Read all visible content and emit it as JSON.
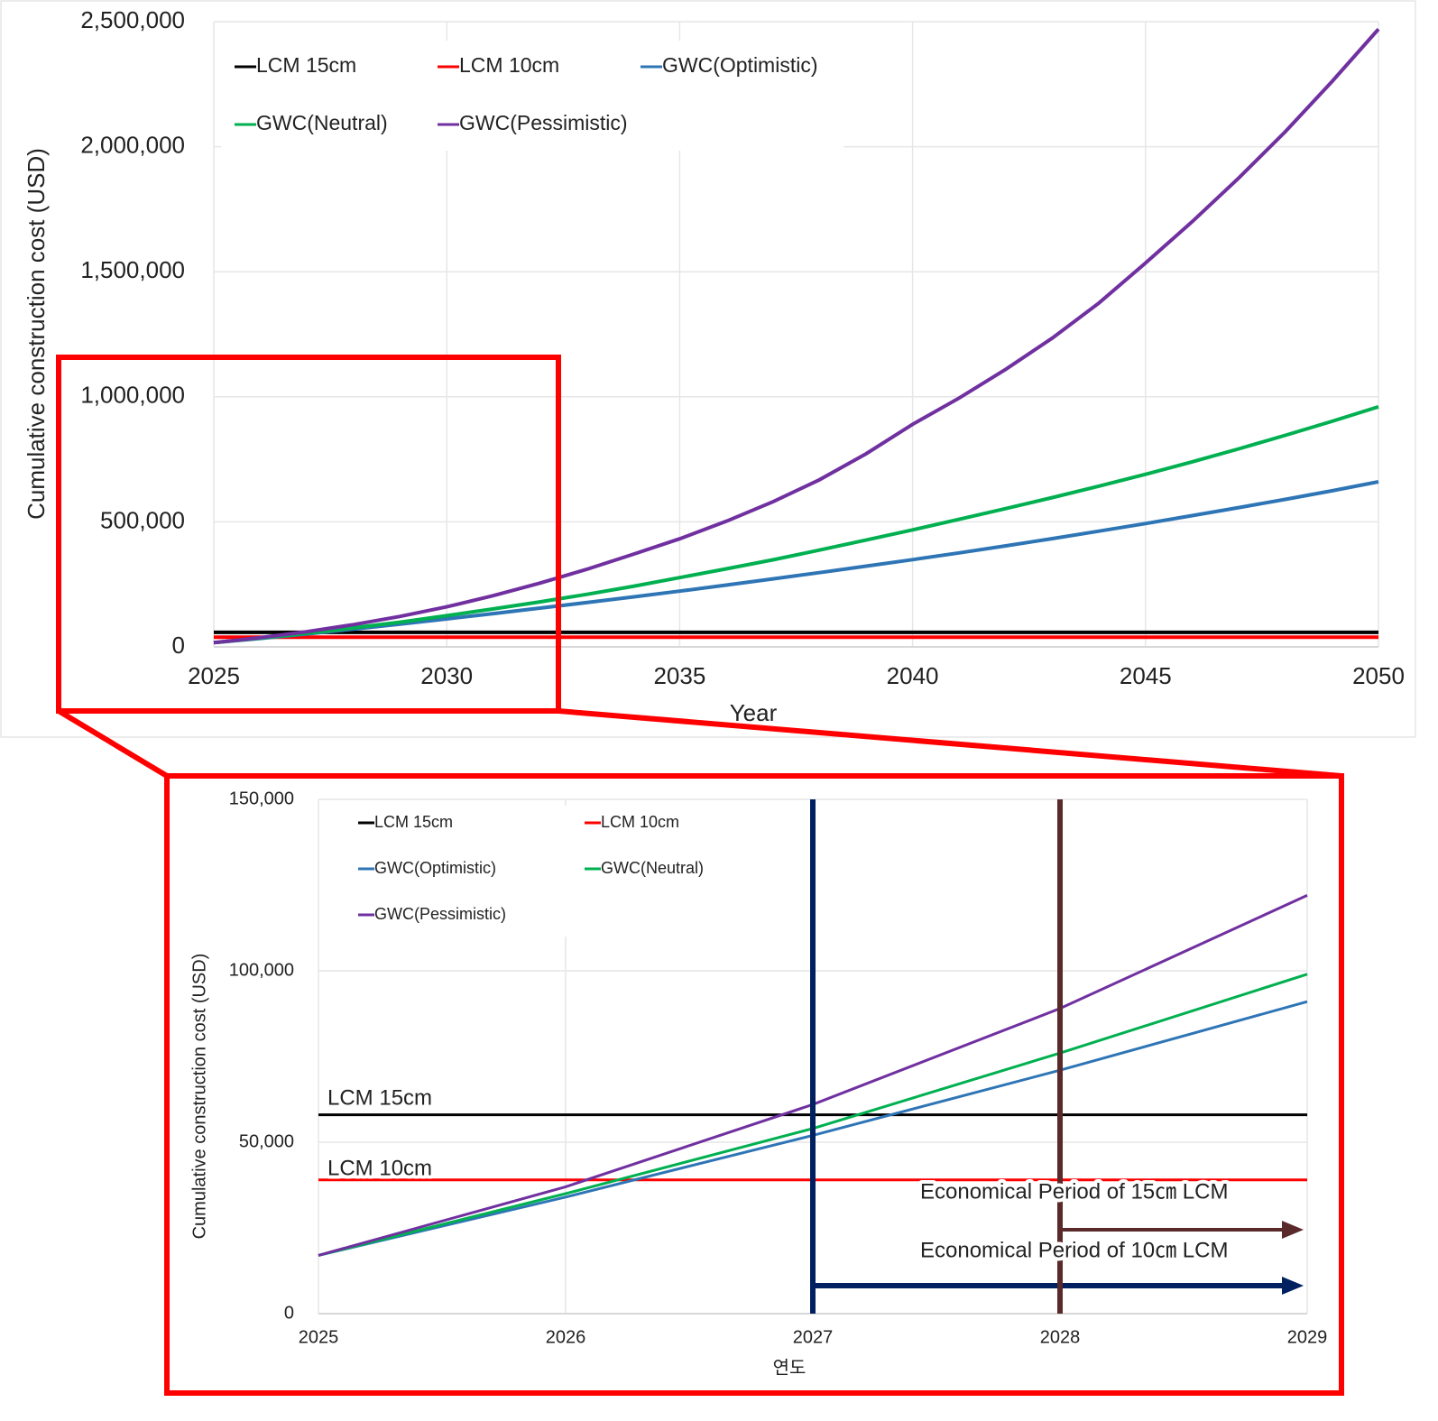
{
  "chart_data": [
    {
      "type": "line",
      "ylabel": "Cumulative construction cost (USD)",
      "xlabel": "Year",
      "x": [
        2025,
        2026,
        2027,
        2028,
        2029,
        2030,
        2031,
        2032,
        2033,
        2034,
        2035,
        2036,
        2037,
        2038,
        2039,
        2040,
        2041,
        2042,
        2043,
        2044,
        2045,
        2046,
        2047,
        2048,
        2049,
        2050
      ],
      "xlim": [
        2025,
        2050
      ],
      "xticks": [
        2025,
        2030,
        2035,
        2040,
        2045,
        2050
      ],
      "ylim": [
        0,
        2500000
      ],
      "yticks": [
        0,
        {
          "value": 500000,
          "label": "500,000"
        },
        {
          "value": 1000000,
          "label": "1,000,000"
        },
        {
          "value": 1500000,
          "label": "1,500,000"
        },
        {
          "value": 2000000,
          "label": "2,000,000"
        },
        {
          "value": 2500000,
          "label": "2,500,000"
        }
      ],
      "grid": true,
      "legend": "top-left",
      "series": [
        {
          "name": "LCM 15cm",
          "color": "#000000",
          "values": [
            58000,
            58000,
            58000,
            58000,
            58000,
            58000,
            58000,
            58000,
            58000,
            58000,
            58000,
            58000,
            58000,
            58000,
            58000,
            58000,
            58000,
            58000,
            58000,
            58000,
            58000,
            58000,
            58000,
            58000,
            58000,
            58000
          ]
        },
        {
          "name": "LCM 10cm",
          "color": "#ff0000",
          "values": [
            39000,
            39000,
            39000,
            39000,
            39000,
            39000,
            39000,
            39000,
            39000,
            39000,
            39000,
            39000,
            39000,
            39000,
            39000,
            39000,
            39000,
            39000,
            39000,
            39000,
            39000,
            39000,
            39000,
            39000,
            39000,
            39000
          ]
        },
        {
          "name": "GWC(Optimistic)",
          "color": "#2e75b6",
          "values": [
            17000,
            34000,
            52000,
            71000,
            91000,
            112000,
            133000,
            155000,
            177000,
            200000,
            223000,
            247000,
            272000,
            297000,
            323000,
            349000,
            376000,
            404000,
            433000,
            463000,
            493000,
            525000,
            557000,
            590000,
            624000,
            660000
          ]
        },
        {
          "name": "GWC(Neutral)",
          "color": "#00b050",
          "values": [
            17000,
            35000,
            54000,
            76000,
            99000,
            125000,
            152000,
            180000,
            210000,
            242000,
            277000,
            312000,
            348000,
            387000,
            427000,
            468000,
            510000,
            553000,
            597000,
            643000,
            690000,
            740000,
            792000,
            846000,
            902000,
            960000
          ]
        },
        {
          "name": "GWC(Pessimistic)",
          "color": "#7030a0",
          "values": [
            17000,
            37000,
            61000,
            89000,
            122000,
            160000,
            205000,
            255000,
            310000,
            370000,
            432000,
            502000,
            580000,
            668000,
            772000,
            890000,
            995000,
            1110000,
            1235000,
            1375000,
            1535000,
            1700000,
            1875000,
            2060000,
            2260000,
            2470000
          ]
        }
      ]
    },
    {
      "type": "line",
      "ylabel": "Cumulative construction cost (USD)",
      "xlabel": "연도",
      "x": [
        2025,
        2026,
        2027,
        2028,
        2029
      ],
      "xlim": [
        2025,
        2029
      ],
      "xticks": [
        2025,
        2026,
        2027,
        2028,
        2029
      ],
      "ylim": [
        0,
        150000
      ],
      "yticks": [
        0,
        {
          "value": 50000,
          "label": "50,000"
        },
        {
          "value": 100000,
          "label": "100,000"
        },
        {
          "value": 150000,
          "label": "150,000"
        }
      ],
      "grid": true,
      "legend": "top-left",
      "series": [
        {
          "name": "LCM 15cm",
          "color": "#000000",
          "values": [
            58000,
            58000,
            58000,
            58000,
            58000
          ]
        },
        {
          "name": "LCM 10cm",
          "color": "#ff0000",
          "values": [
            39000,
            39000,
            39000,
            39000,
            39000
          ]
        },
        {
          "name": "GWC(Optimistic)",
          "color": "#2e75b6",
          "values": [
            17000,
            34000,
            52000,
            71000,
            91000
          ]
        },
        {
          "name": "GWC(Neutral)",
          "color": "#00b050",
          "values": [
            17000,
            35000,
            54000,
            76000,
            99000
          ]
        },
        {
          "name": "GWC(Pessimistic)",
          "color": "#7030a0",
          "values": [
            17000,
            37000,
            61000,
            89000,
            122000
          ]
        }
      ],
      "vlines": [
        {
          "x": 2027,
          "color": "#002060"
        },
        {
          "x": 2028,
          "color": "#5a2a2a"
        }
      ],
      "annotations": [
        "LCM 15cm",
        "LCM 10cm",
        "Economical Period of 15㎝ LCM",
        "Economical Period of 10㎝ LCM"
      ]
    }
  ]
}
